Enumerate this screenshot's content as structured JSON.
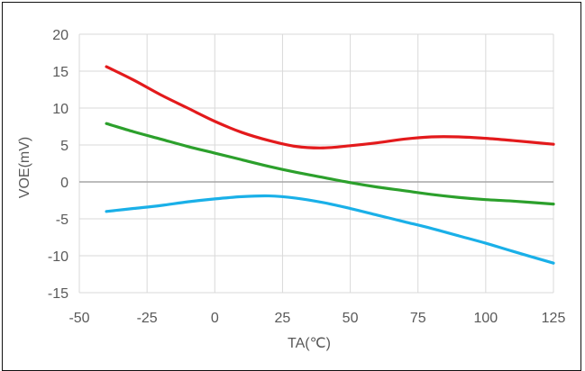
{
  "chart_data": {
    "type": "line",
    "xlabel": "TA(℃)",
    "ylabel": "VOE(mV)",
    "xlim": [
      -50,
      125
    ],
    "ylim": [
      -15,
      20
    ],
    "x_ticks": [
      -50,
      -25,
      0,
      25,
      50,
      75,
      100,
      125
    ],
    "y_ticks": [
      -15,
      -10,
      -5,
      0,
      5,
      10,
      15,
      20
    ],
    "grid": true,
    "legend": "none",
    "series": [
      {
        "color": "#e31a1c",
        "x": [
          -40,
          -30,
          -20,
          -10,
          0,
          10,
          20,
          30,
          40,
          50,
          60,
          70,
          80,
          90,
          100,
          110,
          125
        ],
        "values": [
          15.6,
          13.8,
          11.8,
          10.0,
          8.2,
          6.7,
          5.6,
          4.8,
          4.6,
          4.9,
          5.3,
          5.8,
          6.1,
          6.1,
          5.9,
          5.6,
          5.1
        ]
      },
      {
        "color": "#2ca02c",
        "x": [
          -40,
          -30,
          -20,
          -10,
          0,
          10,
          20,
          30,
          40,
          50,
          60,
          70,
          80,
          90,
          100,
          110,
          125
        ],
        "values": [
          7.9,
          6.8,
          5.8,
          4.8,
          3.9,
          3.0,
          2.1,
          1.3,
          0.6,
          -0.1,
          -0.7,
          -1.2,
          -1.7,
          -2.1,
          -2.4,
          -2.6,
          -3.0
        ]
      },
      {
        "color": "#1ab0e8",
        "x": [
          -40,
          -30,
          -20,
          -10,
          0,
          10,
          20,
          30,
          40,
          50,
          60,
          70,
          80,
          90,
          100,
          110,
          125
        ],
        "values": [
          -4.0,
          -3.6,
          -3.2,
          -2.7,
          -2.3,
          -2.0,
          -1.9,
          -2.2,
          -2.8,
          -3.6,
          -4.5,
          -5.4,
          -6.3,
          -7.3,
          -8.3,
          -9.4,
          -11.0
        ]
      }
    ]
  }
}
